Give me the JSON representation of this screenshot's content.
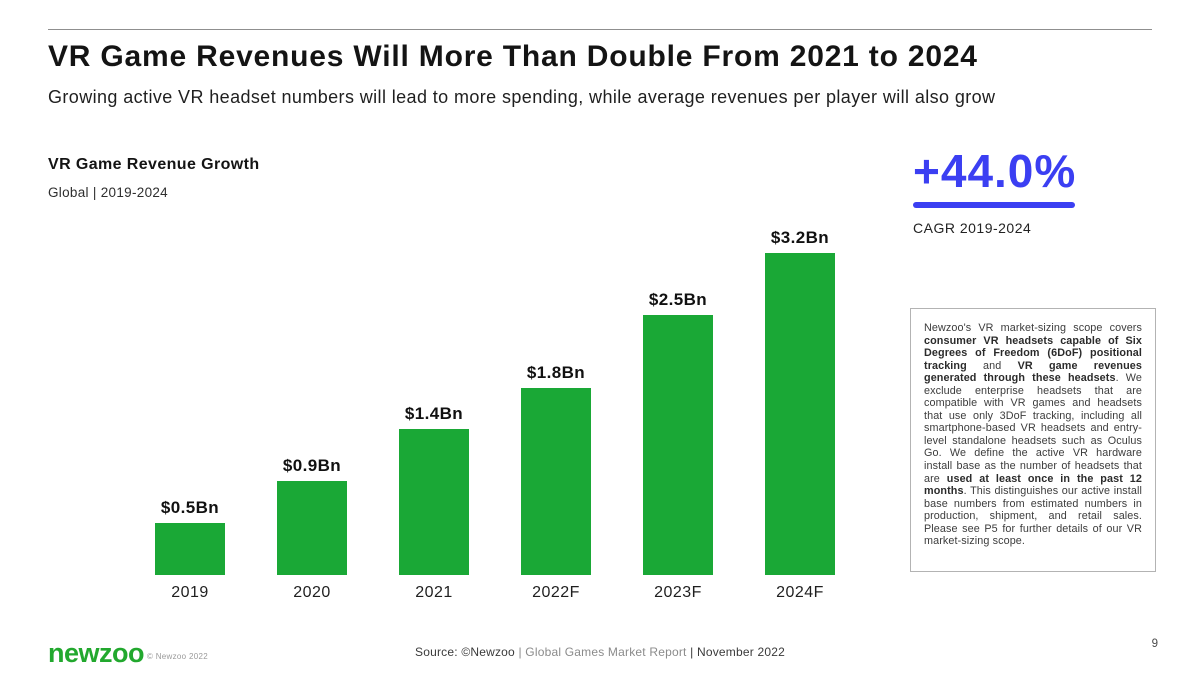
{
  "slide": {
    "title": "VR Game Revenues Will More Than Double From 2021 to 2024",
    "subtitle": "Growing active VR headset numbers will lead to more spending, while average revenues per player will also grow",
    "page_number": "9"
  },
  "chart_header": {
    "title": "VR Game Revenue Growth",
    "scope": "Global | 2019-2024"
  },
  "cagr": {
    "value": "+44.0%",
    "label": "CAGR 2019-2024",
    "accent_color": "#3b3ff2"
  },
  "chart_data": {
    "type": "bar",
    "title": "VR Game Revenue Growth",
    "subtitle": "Global | 2019-2024",
    "categories": [
      "2019",
      "2020",
      "2021",
      "2022F",
      "2023F",
      "2024F"
    ],
    "values": [
      0.5,
      0.9,
      1.4,
      1.8,
      2.5,
      3.2
    ],
    "value_labels": [
      "$0.5Bn",
      "$0.9Bn",
      "$1.4Bn",
      "$1.8Bn",
      "$2.5Bn",
      "$3.2Bn"
    ],
    "unit": "USD billions",
    "bar_color": "#1aa836",
    "ylim": [
      0,
      3.35
    ],
    "grid": false,
    "legend": "none",
    "axis_lines": "none"
  },
  "scope_note": {
    "segments": [
      {
        "text": "Newzoo's VR market-sizing scope covers ",
        "bold": false
      },
      {
        "text": "consumer VR headsets capable of Six Degrees of Freedom (6DoF) positional tracking",
        "bold": true
      },
      {
        "text": " and ",
        "bold": false
      },
      {
        "text": "VR game revenues generated through these headsets",
        "bold": true
      },
      {
        "text": ". We exclude enterprise headsets that are compatible with VR games and headsets that use only 3DoF tracking, including all smartphone-based VR headsets and entry-level standalone headsets such as Oculus Go. We define the active VR hardware install base as the number of headsets that are ",
        "bold": false
      },
      {
        "text": "used at least once in the past 12 months",
        "bold": true
      },
      {
        "text": ". This distinguishes our active install base numbers from estimated numbers in production, shipment, and retail sales. Please see P5 for further details of our VR market-sizing scope.",
        "bold": false
      }
    ]
  },
  "footer": {
    "logo_text": "newzoo",
    "copyright": "© Newzoo 2022",
    "brand_green": "#22a82e",
    "source_parts": [
      {
        "text": "Source: ©Newzoo ",
        "shade": "dark"
      },
      {
        "text": "| Global Games Market Report ",
        "shade": "light"
      },
      {
        "text": "| November 2022",
        "shade": "dark"
      }
    ]
  }
}
